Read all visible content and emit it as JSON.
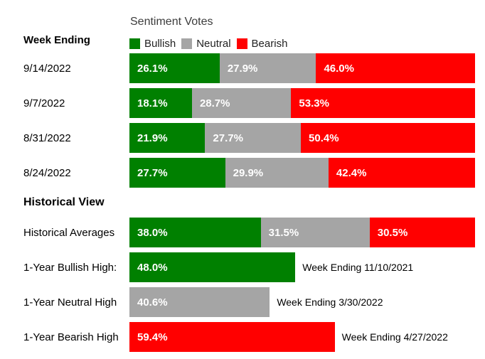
{
  "header": {
    "left_title": "Week Ending",
    "chart_title": "Sentiment Votes",
    "legend": [
      {
        "label": "Bullish",
        "series": "bullish"
      },
      {
        "label": "Neutral",
        "series": "neutral"
      },
      {
        "label": "Bearish",
        "series": "bearish"
      }
    ]
  },
  "sections": {
    "historical_title": "Historical View"
  },
  "chart_data": {
    "type": "bar",
    "subtype": "horizontal-stacked-percent",
    "title": "Sentiment Votes",
    "axis_max_percent": 100,
    "legend_position": "top",
    "colors": {
      "bullish": "#008000",
      "neutral": "#a5a5a5",
      "bearish": "#ff0000"
    },
    "weekly_rows": [
      {
        "label": "9/14/2022",
        "segments": [
          {
            "series": "bullish",
            "value": 26.1
          },
          {
            "series": "neutral",
            "value": 27.9
          },
          {
            "series": "bearish",
            "value": 46.0
          }
        ]
      },
      {
        "label": "9/7/2022",
        "segments": [
          {
            "series": "bullish",
            "value": 18.1
          },
          {
            "series": "neutral",
            "value": 28.7
          },
          {
            "series": "bearish",
            "value": 53.3
          }
        ]
      },
      {
        "label": "8/31/2022",
        "segments": [
          {
            "series": "bullish",
            "value": 21.9
          },
          {
            "series": "neutral",
            "value": 27.7
          },
          {
            "series": "bearish",
            "value": 50.4
          }
        ]
      },
      {
        "label": "8/24/2022",
        "segments": [
          {
            "series": "bullish",
            "value": 27.7
          },
          {
            "series": "neutral",
            "value": 29.9
          },
          {
            "series": "bearish",
            "value": 42.4
          }
        ]
      }
    ],
    "historical_rows": [
      {
        "label": "Historical Averages",
        "segments": [
          {
            "series": "bullish",
            "value": 38.0
          },
          {
            "series": "neutral",
            "value": 31.5
          },
          {
            "series": "bearish",
            "value": 30.5
          }
        ]
      },
      {
        "label": "1-Year Bullish High:",
        "segments": [
          {
            "series": "bullish",
            "value": 48.0
          }
        ],
        "annotation": "Week Ending 11/10/2021"
      },
      {
        "label": "1-Year Neutral High",
        "segments": [
          {
            "series": "neutral",
            "value": 40.6
          }
        ],
        "annotation": "Week Ending 3/30/2022"
      },
      {
        "label": "1-Year Bearish High",
        "segments": [
          {
            "series": "bearish",
            "value": 59.4
          }
        ],
        "annotation": "Week Ending 4/27/2022"
      }
    ]
  }
}
